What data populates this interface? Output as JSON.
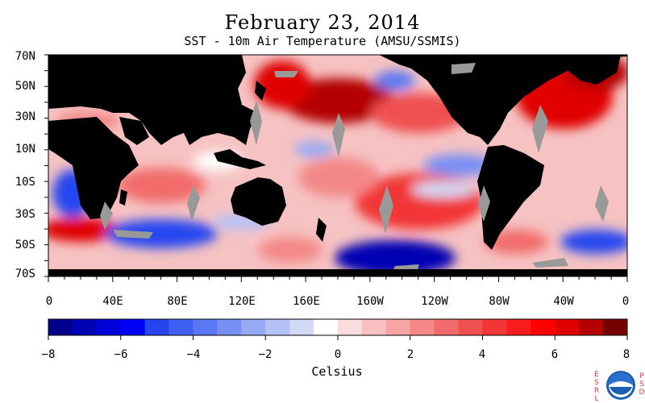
{
  "title": "February 23, 2014",
  "subtitle": "SST - 10m Air Temperature (AMSU/SSMIS)",
  "lat_labels": [
    "70N",
    "50N",
    "30N",
    "10N",
    "10S",
    "30S",
    "50S",
    "70S"
  ],
  "lon_labels": [
    "0",
    "40E",
    "80E",
    "120E",
    "160E",
    "160W",
    "120W",
    "80W",
    "40W",
    "0"
  ],
  "colorbar": {
    "min": -8,
    "max": 8,
    "tick_labels": [
      "−8",
      "−6",
      "−4",
      "−2",
      "0",
      "2",
      "4",
      "6",
      "8"
    ],
    "units": "Celsius",
    "colors": [
      "#00008c",
      "#0000b4",
      "#0000d8",
      "#0000f8",
      "#2846f0",
      "#4060f4",
      "#5a78f4",
      "#7890f4",
      "#96aaf6",
      "#b4c2f8",
      "#d2daf8",
      "#ffffff",
      "#fcdcdc",
      "#f8c0c0",
      "#f6a4a4",
      "#f48888",
      "#f26c6c",
      "#f05050",
      "#f23636",
      "#f81c1c",
      "#ff0000",
      "#e00000",
      "#b40000",
      "#780000"
    ]
  },
  "logo": {
    "left_letters": "ESRL",
    "right_letters": "PSD",
    "center": "NOAA"
  },
  "colors": {
    "land": "#000000",
    "sea_ice": "#999999",
    "warm": "#e00000",
    "cool": "#2846f0"
  }
}
